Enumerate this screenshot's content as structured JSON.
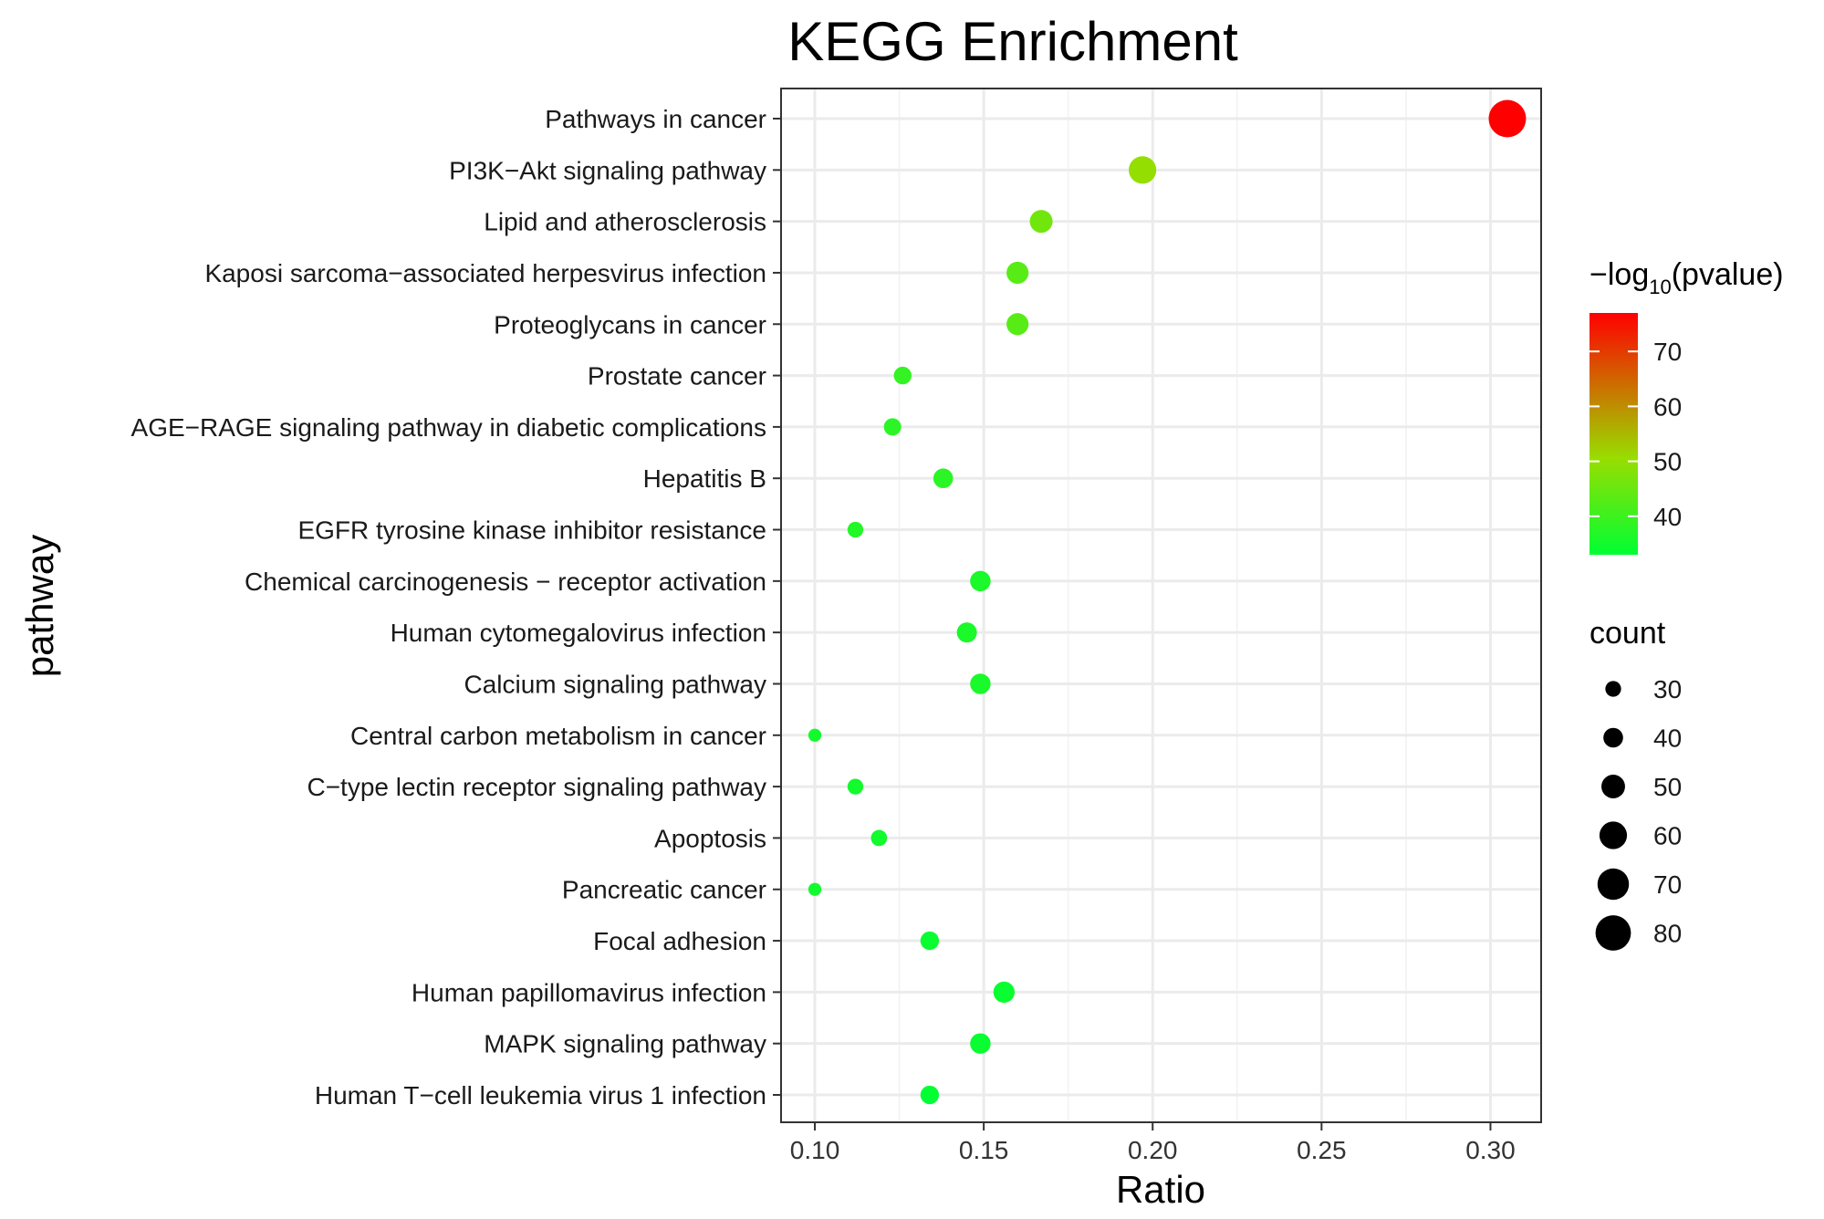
{
  "chart_data": {
    "type": "scatter",
    "title": "KEGG Enrichment",
    "xlabel": "Ratio",
    "ylabel": "pathway",
    "xlim": [
      0.09,
      0.315
    ],
    "x_ticks": [
      0.1,
      0.15,
      0.2,
      0.25,
      0.3
    ],
    "x_tick_labels": [
      "0.10",
      "0.15",
      "0.20",
      "0.25",
      "0.30"
    ],
    "grid": true,
    "categories": [
      "Pathways in cancer",
      "PI3K−Akt signaling pathway",
      "Lipid and atherosclerosis",
      "Kaposi sarcoma−associated herpesvirus infection",
      "Proteoglycans in cancer",
      "Prostate cancer",
      "AGE−RAGE signaling pathway in diabetic complications",
      "Hepatitis B",
      "EGFR tyrosine kinase inhibitor resistance",
      "Chemical carcinogenesis − receptor activation",
      "Human cytomegalovirus infection",
      "Calcium signaling pathway",
      "Central carbon metabolism in cancer",
      "C−type lectin receptor signaling pathway",
      "Apoptosis",
      "Pancreatic cancer",
      "Focal adhesion",
      "Human papillomavirus infection",
      "MAPK signaling pathway",
      "Human T−cell leukemia virus 1 infection"
    ],
    "ratio": [
      0.305,
      0.197,
      0.167,
      0.16,
      0.16,
      0.126,
      0.123,
      0.138,
      0.112,
      0.149,
      0.145,
      0.149,
      0.1,
      0.112,
      0.119,
      0.1,
      0.134,
      0.156,
      0.149,
      0.134
    ],
    "count": [
      85,
      60,
      48,
      46,
      46,
      35,
      34,
      40,
      30,
      42,
      41,
      42,
      23,
      30,
      31,
      23,
      37,
      44,
      42,
      37
    ],
    "neg_log10_pvalue": [
      77,
      50,
      46,
      43,
      43,
      39,
      38,
      38,
      37,
      36,
      36,
      36,
      35,
      35,
      35,
      35,
      34,
      34,
      34,
      33
    ],
    "color_legend": {
      "title_prefix": "−log",
      "title_subscript": "10",
      "title_suffix": "(pvalue)",
      "range": [
        33,
        77
      ],
      "ticks": [
        40,
        50,
        60,
        70
      ],
      "low_color": "#00ff33",
      "mid_color": "#99dd00",
      "high_color": "#ff0000",
      "placement": "right"
    },
    "size_legend": {
      "title": "count",
      "values": [
        30,
        40,
        50,
        60,
        70,
        80
      ],
      "placement": "right"
    }
  }
}
